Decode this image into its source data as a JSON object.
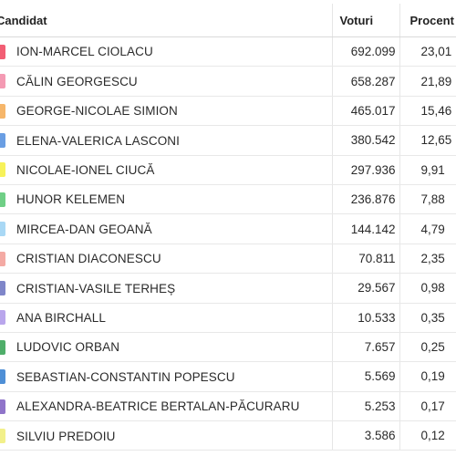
{
  "headers": {
    "candidate": "Candidat",
    "votes": "Voturi",
    "percent": "Procent"
  },
  "rows": [
    {
      "name": "ION-MARCEL CIOLACU",
      "votes": "692.099",
      "percent": "23,01",
      "color": "#f25e74"
    },
    {
      "name": "CĂLIN GEORGESCU",
      "votes": "658.287",
      "percent": "21,89",
      "color": "#f49ab3"
    },
    {
      "name": "GEORGE-NICOLAE SIMION",
      "votes": "465.017",
      "percent": "15,46",
      "color": "#f6b66a"
    },
    {
      "name": "ELENA-VALERICA LASCONI",
      "votes": "380.542",
      "percent": "12,65",
      "color": "#6a9ee3"
    },
    {
      "name": "NICOLAE-IONEL CIUCĂ",
      "votes": "297.936",
      "percent": "9,91",
      "color": "#f7f25a"
    },
    {
      "name": "HUNOR KELEMEN",
      "votes": "236.876",
      "percent": "7,88",
      "color": "#6fcf86"
    },
    {
      "name": "MIRCEA-DAN GEOANĂ",
      "votes": "144.142",
      "percent": "4,79",
      "color": "#a9d8f5"
    },
    {
      "name": "CRISTIAN DIACONESCU",
      "votes": "70.811",
      "percent": "2,35",
      "color": "#f4aaa4"
    },
    {
      "name": "CRISTIAN-VASILE TERHEȘ",
      "votes": "29.567",
      "percent": "0,98",
      "color": "#7f86c9"
    },
    {
      "name": "ANA BIRCHALL",
      "votes": "10.533",
      "percent": "0,35",
      "color": "#b9a6ec"
    },
    {
      "name": "LUDOVIC ORBAN",
      "votes": "7.657",
      "percent": "0,25",
      "color": "#4fae6a"
    },
    {
      "name": "SEBASTIAN-CONSTANTIN POPESCU",
      "votes": "5.569",
      "percent": "0,19",
      "color": "#4f8fd6"
    },
    {
      "name": "ALEXANDRA-BEATRICE BERTALAN-PĂCURARU",
      "votes": "5.253",
      "percent": "0,17",
      "color": "#8f74c9"
    },
    {
      "name": "SILVIU PREDOIU",
      "votes": "3.586",
      "percent": "0,12",
      "color": "#f2f08a"
    }
  ]
}
